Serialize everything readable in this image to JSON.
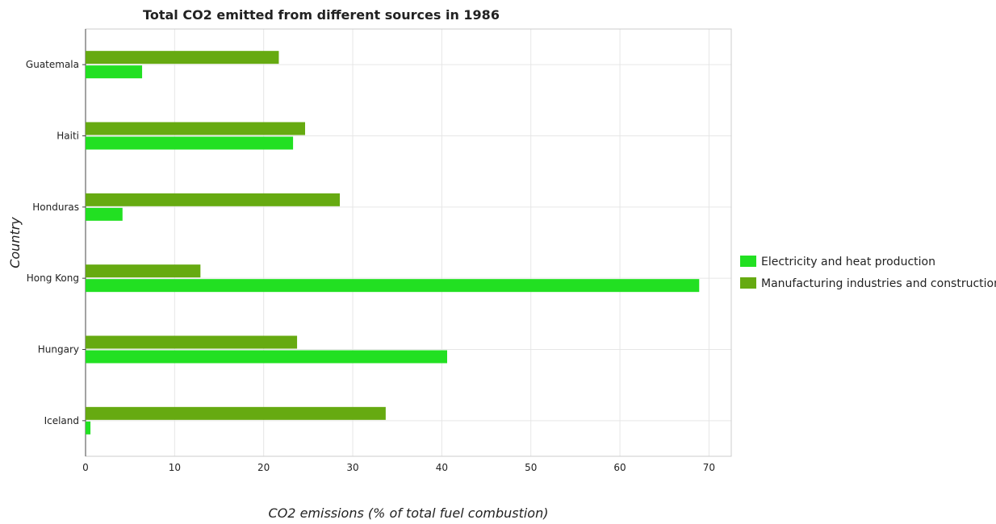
{
  "chart_data": {
    "type": "bar",
    "orientation": "horizontal",
    "title": "Total CO2 emitted from different sources in 1986",
    "xlabel": "CO2 emissions (% of total fuel combustion)",
    "ylabel": "Country",
    "categories": [
      "Guatemala",
      "Haiti",
      "Honduras",
      "Hong Kong",
      "Hungary",
      "Iceland"
    ],
    "series": [
      {
        "name": "Electricity and heat production",
        "color": "#22e022",
        "values": [
          6.35,
          23.3,
          4.15,
          68.9,
          40.6,
          0.55
        ]
      },
      {
        "name": "Manufacturing industries and construction",
        "color": "#66aa11",
        "values": [
          21.7,
          24.65,
          28.55,
          12.9,
          23.75,
          33.7
        ]
      }
    ],
    "xlim": [
      0,
      72.5
    ],
    "xticks": [
      "0",
      "10",
      "20",
      "30",
      "40",
      "50",
      "60",
      "70"
    ],
    "xtick_values": [
      0,
      10,
      20,
      30,
      40,
      50,
      60,
      70
    ],
    "grid": true,
    "legend_position": "right"
  }
}
